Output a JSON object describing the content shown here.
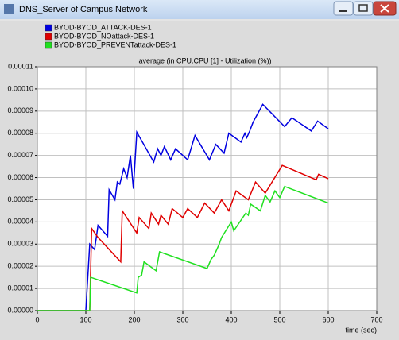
{
  "window": {
    "title": "DNS_Server of Campus Network"
  },
  "chart_data": {
    "type": "line",
    "title": "average (in CPU.CPU [1] - Utilization (%))",
    "x_label": "time (sec)",
    "xlim": [
      0,
      700
    ],
    "xticks": [
      0,
      100,
      200,
      300,
      400,
      500,
      600,
      700
    ],
    "ylim": [
      0,
      0.00011
    ],
    "yticks": [
      {
        "value": 0,
        "label": "0.00000"
      },
      {
        "value": 1e-05,
        "label": "0.00001"
      },
      {
        "value": 2e-05,
        "label": "0.00002"
      },
      {
        "value": 3e-05,
        "label": "0.00003"
      },
      {
        "value": 4e-05,
        "label": "0.00004"
      },
      {
        "value": 5e-05,
        "label": "0.00005"
      },
      {
        "value": 6e-05,
        "label": "0.00006"
      },
      {
        "value": 7e-05,
        "label": "0.00007"
      },
      {
        "value": 8e-05,
        "label": "0.00008"
      },
      {
        "value": 9e-05,
        "label": "0.00009"
      },
      {
        "value": 0.0001,
        "label": "0.00010"
      },
      {
        "value": 0.00011,
        "label": "0.00011"
      }
    ],
    "grid": true,
    "series": [
      {
        "name": "BYOD-BYOD_ATTACK-DES-1",
        "color": "#0000e0",
        "x": [
          0,
          100,
          108,
          118,
          125,
          145,
          148,
          160,
          165,
          170,
          178,
          185,
          192,
          198,
          205,
          240,
          248,
          255,
          262,
          275,
          285,
          310,
          325,
          355,
          368,
          385,
          395,
          420,
          428,
          432,
          438,
          445,
          465,
          510,
          525,
          565,
          578,
          600
        ],
        "values": [
          0,
          0,
          3e-05,
          2.75e-05,
          3.85e-05,
          3.35e-05,
          5.45e-05,
          5e-05,
          5.8e-05,
          5.7e-05,
          6.4e-05,
          6e-05,
          7e-05,
          5.5e-05,
          8.05e-05,
          6.7e-05,
          7.3e-05,
          7e-05,
          7.4e-05,
          6.8e-05,
          7.3e-05,
          6.8e-05,
          7.9e-05,
          6.8e-05,
          7.5e-05,
          7.1e-05,
          8e-05,
          7.6e-05,
          8e-05,
          7.8e-05,
          8.1e-05,
          8.5e-05,
          9.3e-05,
          8.3e-05,
          8.7e-05,
          8.1e-05,
          8.55e-05,
          8.2e-05
        ]
      },
      {
        "name": "BYOD-BYOD_NOattack-DES-1",
        "color": "#e00000",
        "x": [
          0,
          108,
          112,
          125,
          172,
          175,
          205,
          210,
          230,
          235,
          250,
          255,
          270,
          278,
          300,
          310,
          330,
          345,
          365,
          380,
          395,
          410,
          435,
          450,
          470,
          505,
          575,
          580,
          600
        ],
        "values": [
          0,
          0,
          3.7e-05,
          3.3e-05,
          2.2e-05,
          4.5e-05,
          3.5e-05,
          4.2e-05,
          3.7e-05,
          4.4e-05,
          3.9e-05,
          4.3e-05,
          3.9e-05,
          4.6e-05,
          4.2e-05,
          4.6e-05,
          4.2e-05,
          4.85e-05,
          4.4e-05,
          5e-05,
          4.5e-05,
          5.4e-05,
          5e-05,
          5.8e-05,
          5.3e-05,
          6.55e-05,
          5.9e-05,
          6.15e-05,
          5.95e-05
        ]
      },
      {
        "name": "BYOD-BYOD_PREVENTattack-DES-1",
        "color": "#20e020",
        "x": [
          0,
          108,
          110,
          205,
          208,
          215,
          220,
          245,
          252,
          350,
          358,
          365,
          375,
          380,
          400,
          405,
          430,
          435,
          440,
          460,
          470,
          480,
          490,
          500,
          510,
          600
        ],
        "values": [
          0,
          0,
          1.5e-05,
          8e-06,
          1.5e-05,
          1.6e-05,
          2.2e-05,
          1.8e-05,
          2.65e-05,
          1.9e-05,
          2.3e-05,
          2.5e-05,
          3e-05,
          3.3e-05,
          4e-05,
          3.6e-05,
          4.4e-05,
          4.3e-05,
          4.8e-05,
          4.5e-05,
          5.2e-05,
          4.9e-05,
          5.4e-05,
          5.1e-05,
          5.6e-05,
          4.85e-05
        ]
      }
    ]
  }
}
